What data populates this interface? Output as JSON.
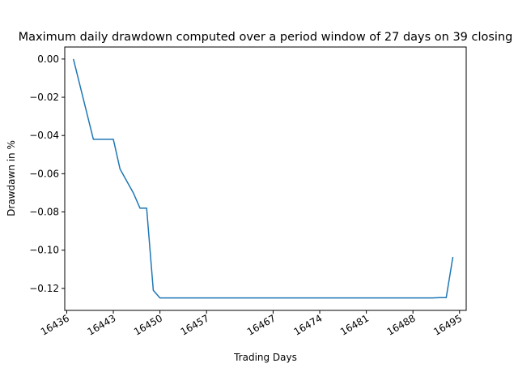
{
  "chart_data": {
    "type": "line",
    "title": "Maximum daily drawdown computed over a period window of 27 days on 39 closing",
    "xlabel": "Trading Days",
    "ylabel": "Drawdawn in %",
    "xlim": [
      16435.7,
      16496.0
    ],
    "ylim": [
      -0.1315,
      0.0063
    ],
    "xticks": [
      16436,
      16443,
      16450,
      16457,
      16467,
      16474,
      16481,
      16488,
      16495
    ],
    "xtick_labels": [
      "16436",
      "16443",
      "16450",
      "16457",
      "16467",
      "16474",
      "16481",
      "16488",
      "16495"
    ],
    "yticks": [
      0.0,
      -0.02,
      -0.04,
      -0.06,
      -0.08,
      -0.1,
      -0.12
    ],
    "ytick_labels": [
      "0.00",
      "−0.02",
      "−0.04",
      "−0.06",
      "−0.08",
      "−0.10",
      "−0.12"
    ],
    "grid": false,
    "line_color": "#1f77b4",
    "series": [
      {
        "x": [
          16437,
          16440,
          16443,
          16444,
          16446,
          16447,
          16448,
          16449,
          16450,
          16451,
          16457,
          16467,
          16474,
          16481,
          16488,
          16491,
          16492,
          16493,
          16494
        ],
        "y": [
          0.0,
          -0.042,
          -0.042,
          -0.0575,
          -0.07,
          -0.078,
          -0.078,
          -0.121,
          -0.125,
          -0.125,
          -0.125,
          -0.125,
          -0.125,
          -0.125,
          -0.125,
          -0.125,
          -0.1248,
          -0.1248,
          -0.1035
        ]
      }
    ]
  }
}
